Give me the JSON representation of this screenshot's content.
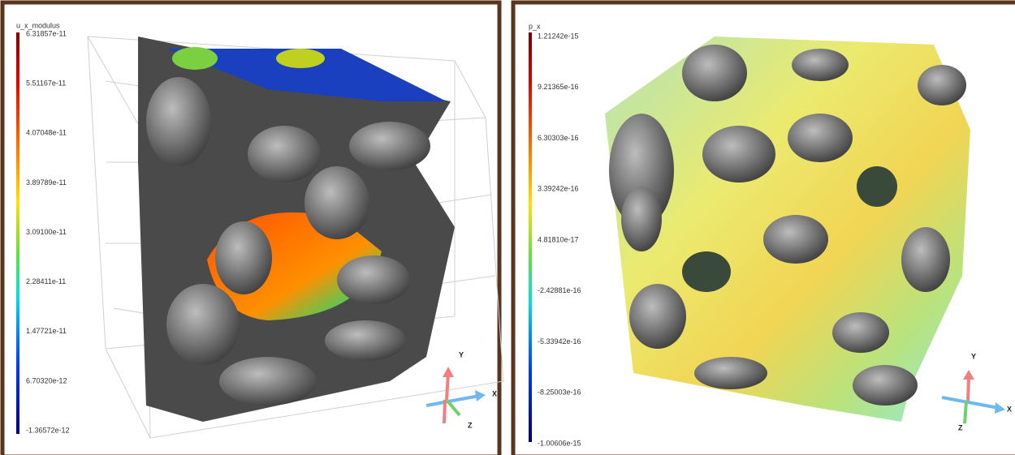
{
  "panels": [
    {
      "legend": {
        "title": "u_x_modulus",
        "labels": [
          "6.31857e-11",
          "5.51167e-11",
          "4.07048e-11",
          "3.89789e-11",
          "3.09100e-11",
          "2.28411e-11",
          "1.47721e-11",
          "6.70320e-12",
          "-1.36572e-12"
        ]
      },
      "axes": {
        "y": "Y",
        "x": "X",
        "z": "Z"
      }
    },
    {
      "legend": {
        "title": "p_x",
        "labels": [
          "1.21242e-15",
          "9.21365e-16",
          "6.30303e-16",
          "3.39242e-16",
          "4.81810e-17",
          "-2.42881e-16",
          "-5.33942e-16",
          "-8.25003e-16",
          "-1.00606e-15"
        ]
      },
      "axes": {
        "y": "Y",
        "x": "X",
        "z": "Z"
      }
    }
  ]
}
